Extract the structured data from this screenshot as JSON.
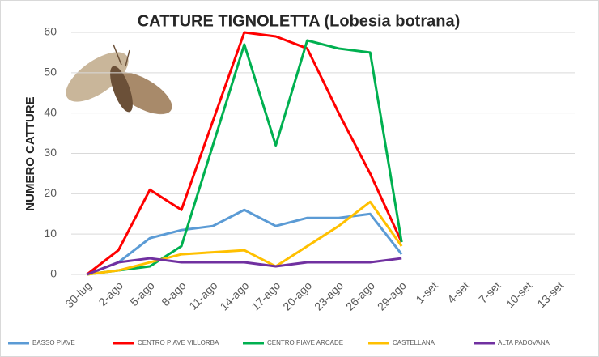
{
  "chart_data": {
    "type": "line",
    "title": "CATTURE TIGNOLETTA (Lobesia botrana)",
    "y_label": "NUMERO CATTURE",
    "categories": [
      "30-lug",
      "2-ago",
      "5-ago",
      "8-ago",
      "11-ago",
      "14-ago",
      "17-ago",
      "20-ago",
      "23-ago",
      "26-ago",
      "29-ago",
      "1-set",
      "4-set",
      "7-set",
      "10-set",
      "13-set"
    ],
    "ylim": [
      0,
      60
    ],
    "yticks": [
      0,
      10,
      20,
      30,
      40,
      50,
      60
    ],
    "grid": true,
    "legend": "bottom",
    "series": [
      {
        "name": "BASSO PIAVE",
        "color": "#5b9bd5",
        "values": [
          0,
          3,
          9,
          11,
          12,
          16,
          12,
          14,
          14,
          15,
          5,
          null,
          null,
          null,
          null,
          null
        ]
      },
      {
        "name": "CENTRO PIAVE VILLORBA",
        "color": "#ff0000",
        "values": [
          0,
          6,
          21,
          16,
          38,
          60,
          59,
          56,
          40,
          25,
          8,
          null,
          null,
          null,
          null,
          null
        ]
      },
      {
        "name": "CENTRO PIAVE ARCADE",
        "color": "#00b050",
        "values": [
          0,
          1,
          2,
          7,
          32,
          57,
          32,
          58,
          56,
          55,
          8,
          null,
          null,
          null,
          null,
          null
        ]
      },
      {
        "name": "CASTELLANA",
        "color": "#ffc000",
        "values": [
          0,
          1,
          3,
          5,
          5.5,
          6,
          2,
          7,
          12,
          18,
          7,
          null,
          null,
          null,
          null,
          null
        ]
      },
      {
        "name": "ALTA PADOVANA",
        "color": "#7030a0",
        "values": [
          0,
          3,
          4,
          3,
          3,
          3,
          2,
          3,
          3,
          3,
          4,
          null,
          null,
          null,
          null,
          null
        ]
      }
    ]
  }
}
